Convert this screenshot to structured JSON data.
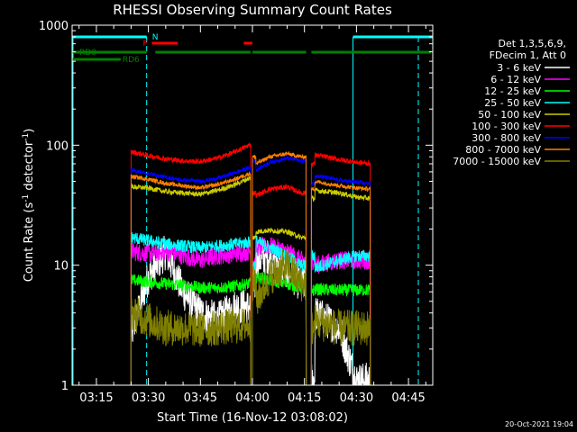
{
  "chart_data": {
    "type": "line",
    "title": "RHESSI Observing Summary Count Rates",
    "xlabel": "Start Time (16-Nov-12 03:08:02)",
    "ylabel_main": "Count Rate (s",
    "ylabel_sup1": "-1",
    "ylabel_mid": " detector",
    "ylabel_sup2": "-1",
    "ylabel_end": ")",
    "y_scale": "log",
    "ylim": [
      1,
      1000
    ],
    "xlim_minutes": [
      188,
      292
    ],
    "x_tick_labels": [
      "03:15",
      "03:30",
      "03:45",
      "04:00",
      "04:15",
      "04:30",
      "04:45"
    ],
    "x_tick_values": [
      195,
      210,
      225,
      240,
      255,
      270,
      285
    ],
    "y_tick_labels": [
      "1",
      "10",
      "100",
      "1000"
    ],
    "y_tick_values": [
      1,
      10,
      100,
      1000
    ],
    "timestamp": "20-Oct-2021 19:04",
    "legend_header": [
      "Det 1,3,5,6,9,",
      "FDecim 1, Att 0"
    ],
    "flag_labels": {
      "night": "N",
      "flare": "F",
      "rd0": "RD0",
      "rd6": "RD6"
    },
    "colors": {
      "background": "#000000",
      "axes": "#ffffff",
      "night": "#00ffff",
      "flare": "#ff0000",
      "rd": "#008000"
    },
    "flags": {
      "night": [
        [
          188,
          209.5
        ],
        [
          269,
          292
        ]
      ],
      "flare": [
        [
          211,
          218.5
        ],
        [
          237.5,
          240
        ]
      ],
      "rd6": [
        [
          188,
          209.5
        ],
        [
          212,
          239.5
        ],
        [
          240,
          255.5
        ],
        [
          257,
          291.5
        ]
      ],
      "rd0": [
        [
          188,
          202
        ]
      ]
    },
    "segments": [
      [
        205,
        239.5
      ],
      [
        240,
        255.5
      ],
      [
        257,
        274
      ]
    ],
    "series": [
      {
        "name": "3 - 6 keV",
        "color": "#ffffff",
        "values": [
          [
            205,
            2.6
          ],
          [
            210,
            8
          ],
          [
            215,
            13
          ],
          [
            220,
            6
          ],
          [
            225,
            4
          ],
          [
            230,
            3.5
          ],
          [
            235,
            4.5
          ],
          [
            239,
            4.5
          ],
          [
            241,
            11
          ],
          [
            245,
            12
          ],
          [
            250,
            9
          ],
          [
            254,
            7
          ],
          [
            258,
            4
          ],
          [
            265,
            3
          ],
          [
            270,
            1.1
          ],
          [
            274,
            1.1
          ]
        ]
      },
      {
        "name": "6 - 12 keV",
        "color": "#ff00ff",
        "values": [
          [
            205,
            13
          ],
          [
            210,
            12.5
          ],
          [
            215,
            13
          ],
          [
            220,
            12
          ],
          [
            225,
            11
          ],
          [
            230,
            12
          ],
          [
            235,
            12.5
          ],
          [
            239,
            13
          ],
          [
            241,
            14
          ],
          [
            245,
            14.5
          ],
          [
            250,
            13
          ],
          [
            254,
            11
          ],
          [
            258,
            10
          ],
          [
            265,
            11
          ],
          [
            270,
            11
          ],
          [
            274,
            11
          ]
        ]
      },
      {
        "name": "12 - 25 keV",
        "color": "#00ff00",
        "values": [
          [
            205,
            7.5
          ],
          [
            210,
            7.3
          ],
          [
            215,
            7
          ],
          [
            220,
            6.8
          ],
          [
            225,
            6.5
          ],
          [
            230,
            6.5
          ],
          [
            235,
            6.7
          ],
          [
            239,
            7
          ],
          [
            241,
            8
          ],
          [
            245,
            7.5
          ],
          [
            250,
            7
          ],
          [
            254,
            6.5
          ],
          [
            258,
            6.3
          ],
          [
            265,
            6.2
          ],
          [
            270,
            6.2
          ],
          [
            274,
            6.2
          ]
        ]
      },
      {
        "name": "25 - 50 keV",
        "color": "#00ffff",
        "values": [
          [
            205,
            17
          ],
          [
            210,
            16
          ],
          [
            215,
            15
          ],
          [
            220,
            14.5
          ],
          [
            225,
            14
          ],
          [
            230,
            14.5
          ],
          [
            235,
            15
          ],
          [
            239,
            15.5
          ],
          [
            241,
            16
          ],
          [
            245,
            14
          ],
          [
            250,
            12
          ],
          [
            254,
            10
          ],
          [
            258,
            9.5
          ],
          [
            265,
            11
          ],
          [
            270,
            12
          ],
          [
            274,
            12
          ]
        ]
      },
      {
        "name": "50 - 100 keV",
        "color": "#cccc00",
        "values": [
          [
            205,
            45
          ],
          [
            210,
            44
          ],
          [
            215,
            41
          ],
          [
            220,
            40
          ],
          [
            225,
            39
          ],
          [
            230,
            42
          ],
          [
            235,
            47
          ],
          [
            239,
            53
          ],
          [
            241,
            19
          ],
          [
            245,
            19.5
          ],
          [
            250,
            19
          ],
          [
            254,
            17
          ],
          [
            258,
            42
          ],
          [
            265,
            40
          ],
          [
            270,
            37
          ],
          [
            274,
            36
          ]
        ]
      },
      {
        "name": "100 - 300 keV",
        "color": "#ff0000",
        "values": [
          [
            205,
            88
          ],
          [
            210,
            82
          ],
          [
            215,
            77
          ],
          [
            220,
            74
          ],
          [
            225,
            73
          ],
          [
            230,
            78
          ],
          [
            235,
            88
          ],
          [
            239,
            100
          ],
          [
            241,
            38
          ],
          [
            245,
            43
          ],
          [
            250,
            45
          ],
          [
            254,
            40
          ],
          [
            258,
            83
          ],
          [
            265,
            76
          ],
          [
            270,
            72
          ],
          [
            274,
            70
          ]
        ]
      },
      {
        "name": "300 - 800 keV",
        "color": "#0000ff",
        "values": [
          [
            205,
            62
          ],
          [
            210,
            58
          ],
          [
            215,
            54
          ],
          [
            220,
            51
          ],
          [
            225,
            50
          ],
          [
            230,
            53
          ],
          [
            235,
            59
          ],
          [
            239,
            65
          ],
          [
            241,
            62
          ],
          [
            245,
            72
          ],
          [
            250,
            78
          ],
          [
            254,
            74
          ],
          [
            258,
            56
          ],
          [
            265,
            51
          ],
          [
            270,
            49
          ],
          [
            274,
            48
          ]
        ]
      },
      {
        "name": "800 - 7000 keV",
        "color": "#ff8000",
        "values": [
          [
            205,
            55
          ],
          [
            210,
            52
          ],
          [
            215,
            48
          ],
          [
            220,
            46
          ],
          [
            225,
            44
          ],
          [
            230,
            47
          ],
          [
            235,
            52
          ],
          [
            239,
            58
          ],
          [
            241,
            70
          ],
          [
            245,
            80
          ],
          [
            250,
            85
          ],
          [
            254,
            80
          ],
          [
            258,
            50
          ],
          [
            265,
            46
          ],
          [
            270,
            44
          ],
          [
            274,
            43
          ]
        ]
      },
      {
        "name": "7000 - 15000 keV",
        "color": "#808000",
        "values": [
          [
            205,
            4
          ],
          [
            210,
            3.5
          ],
          [
            215,
            3
          ],
          [
            220,
            3
          ],
          [
            225,
            2.9
          ],
          [
            230,
            3
          ],
          [
            235,
            3.1
          ],
          [
            239,
            3.2
          ],
          [
            241,
            5
          ],
          [
            245,
            8
          ],
          [
            250,
            10
          ],
          [
            254,
            7
          ],
          [
            258,
            3.4
          ],
          [
            265,
            3
          ],
          [
            270,
            3
          ],
          [
            274,
            3
          ]
        ]
      }
    ]
  }
}
